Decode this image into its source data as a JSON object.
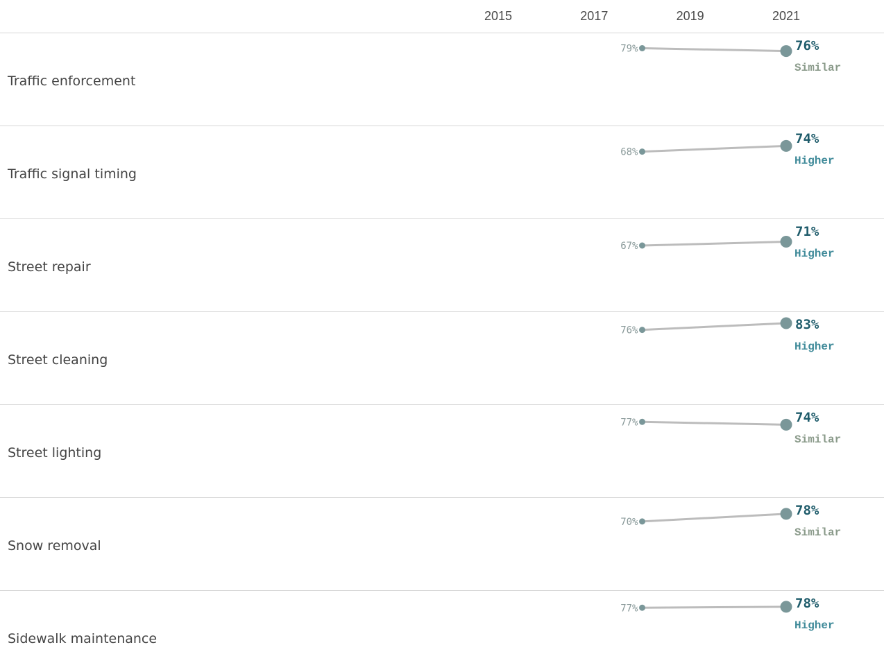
{
  "chart_data": {
    "type": "line",
    "title": "",
    "xlabel": "",
    "ylabel": "",
    "x_ticks": [
      "2015",
      "2017",
      "2019",
      "2021"
    ],
    "x_range": [
      2015,
      2021
    ],
    "rows": [
      {
        "label": "Traffic enforcement",
        "start_year": 2018,
        "start_value": 79,
        "start_text": "79%",
        "end_year": 2021,
        "end_value": 76,
        "end_text": "76%",
        "status": "Similar"
      },
      {
        "label": "Traffic signal timing",
        "start_year": 2018,
        "start_value": 68,
        "start_text": "68%",
        "end_year": 2021,
        "end_value": 74,
        "end_text": "74%",
        "status": "Higher"
      },
      {
        "label": "Street repair",
        "start_year": 2018,
        "start_value": 67,
        "start_text": "67%",
        "end_year": 2021,
        "end_value": 71,
        "end_text": "71%",
        "status": "Higher"
      },
      {
        "label": "Street cleaning",
        "start_year": 2018,
        "start_value": 76,
        "start_text": "76%",
        "end_year": 2021,
        "end_value": 83,
        "end_text": "83%",
        "status": "Higher"
      },
      {
        "label": "Street lighting",
        "start_year": 2018,
        "start_value": 77,
        "start_text": "77%",
        "end_year": 2021,
        "end_value": 74,
        "end_text": "74%",
        "status": "Similar"
      },
      {
        "label": "Snow removal",
        "start_year": 2018,
        "start_value": 70,
        "start_text": "70%",
        "end_year": 2021,
        "end_value": 78,
        "end_text": "78%",
        "status": "Similar"
      },
      {
        "label": "Sidewalk maintenance",
        "start_year": 2018,
        "start_value": 77,
        "start_text": "77%",
        "end_year": 2021,
        "end_value": 78,
        "end_text": "78%",
        "status": "Higher"
      }
    ],
    "colors": {
      "line": "#bcbcbc",
      "point": "#7a9799",
      "end_value": "#1f5c6b",
      "status_higher": "#3f8a99",
      "status_similar": "#8a9a8a",
      "start_value": "#8a9a9a",
      "divider": "#d6d6d6"
    },
    "grid": false,
    "legend": "none"
  }
}
